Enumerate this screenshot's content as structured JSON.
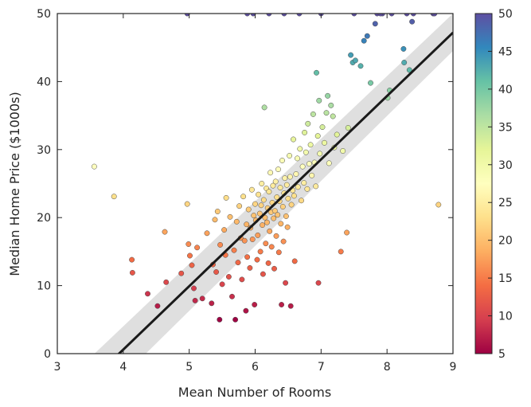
{
  "chart_data": {
    "type": "scatter",
    "title": "",
    "xlabel": "Mean Number of Rooms",
    "ylabel": "Median Home Price ($1000s)",
    "xlim": [
      3,
      9
    ],
    "ylim": [
      0,
      50
    ],
    "xticks": [
      "3",
      "4",
      "5",
      "6",
      "7",
      "8",
      "9"
    ],
    "yticks": [
      "0",
      "10",
      "20",
      "30",
      "40",
      "50"
    ],
    "grid": false,
    "colormap": "Spectral",
    "color_range": [
      5,
      50
    ],
    "colorbar_ticks": [
      "5",
      "10",
      "15",
      "20",
      "25",
      "30",
      "35",
      "40",
      "45",
      "50"
    ],
    "colorbar_colors": [
      "#9e0142",
      "#d53e4f",
      "#f46d43",
      "#fdae61",
      "#fee08b",
      "#ffffbf",
      "#e6f598",
      "#abdda4",
      "#66c2a5",
      "#3288bd",
      "#5e4fa2"
    ],
    "regression_line": {
      "color": "#1a1a1a",
      "ci_color": "#d9d9d9",
      "x": [
        3.4,
        9.0
      ],
      "y": [
        -5.0,
        47.2
      ],
      "ci_lower": [
        -9.0,
        44.5
      ],
      "ci_upper": [
        -1.5,
        50.0
      ]
    },
    "points": [
      [
        3.56,
        27.5
      ],
      [
        3.86,
        23.1
      ],
      [
        4.13,
        13.8
      ],
      [
        4.14,
        11.9
      ],
      [
        4.37,
        8.8
      ],
      [
        4.52,
        7.0
      ],
      [
        4.63,
        17.9
      ],
      [
        4.65,
        10.5
      ],
      [
        4.88,
        11.8
      ],
      [
        4.97,
        22.0
      ],
      [
        4.99,
        16.1
      ],
      [
        5.01,
        14.4
      ],
      [
        5.04,
        13.0
      ],
      [
        5.07,
        9.6
      ],
      [
        5.09,
        7.8
      ],
      [
        5.12,
        15.6
      ],
      [
        5.2,
        8.1
      ],
      [
        5.27,
        17.7
      ],
      [
        5.34,
        7.4
      ],
      [
        5.36,
        13.1
      ],
      [
        5.39,
        19.7
      ],
      [
        5.41,
        12.0
      ],
      [
        5.43,
        20.9
      ],
      [
        5.46,
        5.0
      ],
      [
        5.47,
        16.0
      ],
      [
        5.5,
        10.2
      ],
      [
        5.53,
        18.2
      ],
      [
        5.55,
        14.5
      ],
      [
        5.56,
        22.9
      ],
      [
        5.6,
        11.3
      ],
      [
        5.62,
        20.1
      ],
      [
        5.65,
        8.4
      ],
      [
        5.68,
        15.2
      ],
      [
        5.7,
        5.0
      ],
      [
        5.72,
        19.4
      ],
      [
        5.74,
        13.4
      ],
      [
        5.76,
        21.7
      ],
      [
        5.78,
        17.0
      ],
      [
        5.8,
        10.9
      ],
      [
        5.82,
        23.1
      ],
      [
        5.84,
        16.6
      ],
      [
        5.86,
        6.3
      ],
      [
        5.87,
        19.0
      ],
      [
        5.88,
        14.2
      ],
      [
        5.9,
        21.2
      ],
      [
        5.92,
        12.6
      ],
      [
        5.93,
        18.5
      ],
      [
        5.95,
        24.1
      ],
      [
        5.96,
        16.8
      ],
      [
        5.98,
        20.3
      ],
      [
        5.99,
        7.2
      ],
      [
        6.0,
        22.0
      ],
      [
        6.01,
        19.6
      ],
      [
        6.03,
        13.8
      ],
      [
        6.04,
        17.4
      ],
      [
        6.05,
        23.4
      ],
      [
        6.07,
        20.6
      ],
      [
        6.08,
        15.0
      ],
      [
        6.09,
        21.8
      ],
      [
        6.1,
        25.0
      ],
      [
        6.11,
        18.9
      ],
      [
        6.12,
        11.7
      ],
      [
        6.13,
        22.6
      ],
      [
        6.14,
        36.2
      ],
      [
        6.15,
        20.0
      ],
      [
        6.16,
        16.2
      ],
      [
        6.17,
        24.3
      ],
      [
        6.18,
        19.3
      ],
      [
        6.19,
        21.4
      ],
      [
        6.2,
        13.3
      ],
      [
        6.21,
        23.8
      ],
      [
        6.22,
        18.0
      ],
      [
        6.23,
        26.6
      ],
      [
        6.24,
        20.8
      ],
      [
        6.25,
        15.7
      ],
      [
        6.26,
        22.2
      ],
      [
        6.27,
        24.7
      ],
      [
        6.28,
        19.9
      ],
      [
        6.29,
        12.5
      ],
      [
        6.3,
        21.0
      ],
      [
        6.31,
        25.3
      ],
      [
        6.32,
        17.3
      ],
      [
        6.33,
        23.0
      ],
      [
        6.34,
        20.4
      ],
      [
        6.35,
        27.1
      ],
      [
        6.36,
        14.9
      ],
      [
        6.37,
        22.4
      ],
      [
        6.38,
        24.4
      ],
      [
        6.39,
        19.1
      ],
      [
        6.4,
        7.2
      ],
      [
        6.41,
        28.4
      ],
      [
        6.42,
        21.6
      ],
      [
        6.43,
        16.5
      ],
      [
        6.44,
        23.6
      ],
      [
        6.45,
        25.8
      ],
      [
        6.46,
        10.4
      ],
      [
        6.47,
        20.2
      ],
      [
        6.48,
        24.8
      ],
      [
        6.49,
        18.6
      ],
      [
        6.5,
        22.8
      ],
      [
        6.52,
        29.1
      ],
      [
        6.53,
        26.0
      ],
      [
        6.54,
        7.0
      ],
      [
        6.55,
        21.9
      ],
      [
        6.57,
        24.0
      ],
      [
        6.58,
        31.5
      ],
      [
        6.59,
        23.2
      ],
      [
        6.6,
        13.6
      ],
      [
        6.62,
        26.4
      ],
      [
        6.64,
        28.7
      ],
      [
        6.65,
        24.5
      ],
      [
        6.67,
        50.0
      ],
      [
        6.68,
        30.1
      ],
      [
        6.7,
        22.5
      ],
      [
        6.72,
        27.5
      ],
      [
        6.74,
        25.1
      ],
      [
        6.75,
        32.5
      ],
      [
        6.77,
        29.6
      ],
      [
        6.79,
        24.2
      ],
      [
        6.8,
        33.8
      ],
      [
        6.82,
        27.9
      ],
      [
        6.84,
        30.7
      ],
      [
        6.86,
        26.2
      ],
      [
        6.88,
        35.2
      ],
      [
        6.9,
        28.1
      ],
      [
        6.92,
        24.6
      ],
      [
        6.93,
        41.3
      ],
      [
        6.95,
        32.0
      ],
      [
        6.96,
        10.4
      ],
      [
        6.97,
        37.2
      ],
      [
        6.98,
        29.4
      ],
      [
        7.0,
        50.0
      ],
      [
        7.02,
        33.3
      ],
      [
        7.05,
        31.0
      ],
      [
        7.08,
        35.4
      ],
      [
        7.1,
        37.9
      ],
      [
        7.12,
        28.0
      ],
      [
        7.15,
        36.5
      ],
      [
        7.18,
        34.9
      ],
      [
        7.2,
        30.3
      ],
      [
        7.24,
        32.2
      ],
      [
        7.3,
        15.0
      ],
      [
        7.33,
        29.8
      ],
      [
        7.39,
        17.8
      ],
      [
        7.41,
        33.2
      ],
      [
        7.45,
        43.9
      ],
      [
        7.48,
        42.8
      ],
      [
        7.5,
        50.0
      ],
      [
        7.52,
        43.1
      ],
      [
        7.6,
        42.3
      ],
      [
        7.65,
        46.0
      ],
      [
        7.7,
        46.7
      ],
      [
        7.75,
        39.8
      ],
      [
        7.82,
        48.5
      ],
      [
        7.85,
        50.0
      ],
      [
        7.93,
        50.0
      ],
      [
        8.01,
        37.6
      ],
      [
        8.04,
        38.7
      ],
      [
        8.26,
        42.8
      ],
      [
        8.25,
        44.8
      ],
      [
        8.3,
        50.0
      ],
      [
        8.34,
        41.7
      ],
      [
        8.38,
        48.8
      ],
      [
        8.7,
        50.0
      ],
      [
        8.72,
        50.0
      ],
      [
        8.78,
        21.9
      ],
      [
        5.97,
        50.0
      ],
      [
        6.21,
        50.0
      ],
      [
        5.88,
        50.0
      ],
      [
        6.44,
        50.0
      ],
      [
        7.9,
        50.0
      ],
      [
        8.07,
        50.0
      ],
      [
        8.4,
        50.0
      ],
      [
        4.97,
        50.0
      ]
    ]
  }
}
